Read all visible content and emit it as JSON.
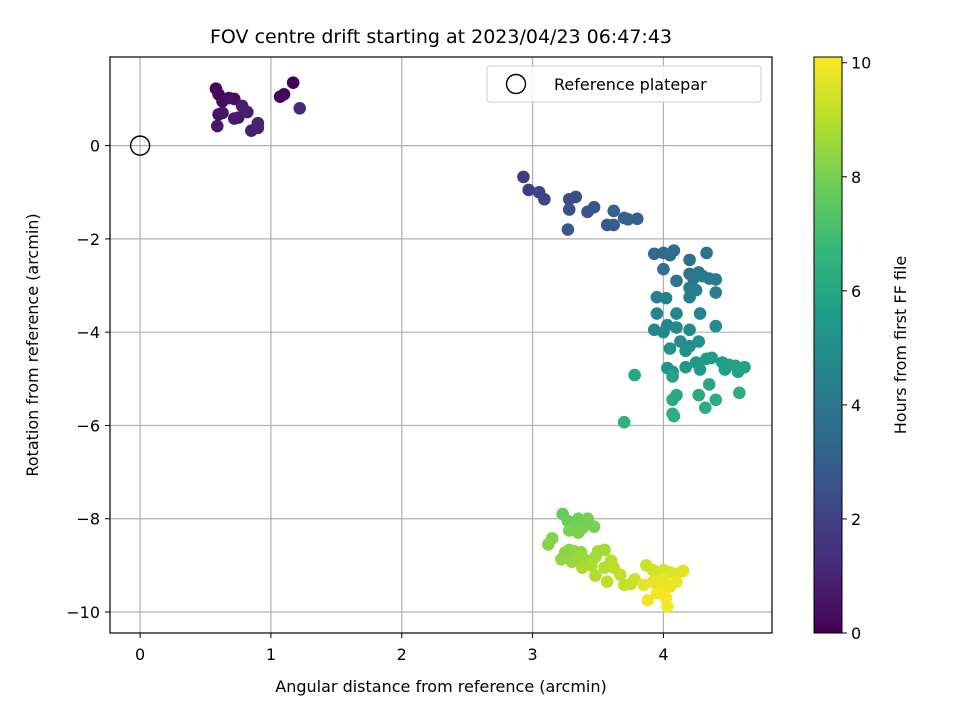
{
  "chart_data": {
    "type": "scatter",
    "title": "FOV centre drift starting at 2023/04/23 06:47:43",
    "xlabel": "Angular distance from reference (arcmin)",
    "ylabel": "Rotation from reference (arcmin)",
    "xlim": [
      -0.23,
      4.83
    ],
    "ylim": [
      -10.45,
      1.9
    ],
    "xticks": [
      0,
      1,
      2,
      3,
      4
    ],
    "yticks": [
      0,
      -2,
      -4,
      -6,
      -8,
      -10
    ],
    "xtick_labels": [
      "0",
      "1",
      "2",
      "3",
      "4"
    ],
    "ytick_labels": [
      "0",
      "−2",
      "−4",
      "−6",
      "−8",
      "−10"
    ],
    "grid": true,
    "legend": {
      "position": "top-right",
      "label": "Reference platepar"
    },
    "reference_point": {
      "x": 0,
      "y": 0
    },
    "colorbar": {
      "label": "Hours from first FF file",
      "range": [
        0,
        10.1
      ],
      "ticks": [
        0,
        2,
        4,
        6,
        8,
        10
      ],
      "tick_labels": [
        "0",
        "2",
        "4",
        "6",
        "8",
        "10"
      ],
      "colormap": "viridis"
    },
    "colors": {
      "viridis": [
        "#440154",
        "#482878",
        "#3e4989",
        "#31688e",
        "#26828e",
        "#1f9e89",
        "#35b779",
        "#6ece58",
        "#b5de2b",
        "#fde725"
      ]
    },
    "series": [
      {
        "points": [
          {
            "x": 0.58,
            "y": 1.22,
            "h": 0.05
          },
          {
            "x": 0.6,
            "y": 1.1,
            "h": 0.2
          },
          {
            "x": 0.63,
            "y": 0.95,
            "h": 0.35
          },
          {
            "x": 0.68,
            "y": 1.02,
            "h": 0.4
          },
          {
            "x": 0.72,
            "y": 1.0,
            "h": 0.5
          },
          {
            "x": 0.6,
            "y": 0.67,
            "h": 0.55
          },
          {
            "x": 0.63,
            "y": 0.7,
            "h": 0.6
          },
          {
            "x": 0.59,
            "y": 0.42,
            "h": 0.65
          },
          {
            "x": 0.75,
            "y": 0.6,
            "h": 0.7
          },
          {
            "x": 0.72,
            "y": 0.58,
            "h": 0.75
          },
          {
            "x": 0.78,
            "y": 0.85,
            "h": 0.8
          },
          {
            "x": 0.82,
            "y": 0.72,
            "h": 0.85
          },
          {
            "x": 0.85,
            "y": 0.32,
            "h": 0.9
          },
          {
            "x": 0.9,
            "y": 0.38,
            "h": 0.95
          },
          {
            "x": 0.9,
            "y": 0.48,
            "h": 1.0
          },
          {
            "x": 1.07,
            "y": 1.05,
            "h": 0.1
          },
          {
            "x": 1.1,
            "y": 1.1,
            "h": 0.15
          },
          {
            "x": 1.17,
            "y": 1.35,
            "h": 0.0
          },
          {
            "x": 1.22,
            "y": 0.8,
            "h": 1.2
          },
          {
            "x": 2.93,
            "y": -0.67,
            "h": 1.8
          },
          {
            "x": 2.97,
            "y": -0.95,
            "h": 1.9
          },
          {
            "x": 3.05,
            "y": -1.0,
            "h": 2.0
          },
          {
            "x": 3.09,
            "y": -1.15,
            "h": 2.1
          },
          {
            "x": 3.28,
            "y": -1.15,
            "h": 2.3
          },
          {
            "x": 3.33,
            "y": -1.1,
            "h": 2.4
          },
          {
            "x": 3.28,
            "y": -1.37,
            "h": 2.5
          },
          {
            "x": 3.42,
            "y": -1.42,
            "h": 2.6
          },
          {
            "x": 3.47,
            "y": -1.32,
            "h": 2.7
          },
          {
            "x": 3.27,
            "y": -1.8,
            "h": 2.8
          },
          {
            "x": 3.57,
            "y": -1.7,
            "h": 2.9
          },
          {
            "x": 3.62,
            "y": -1.7,
            "h": 3.0
          },
          {
            "x": 3.62,
            "y": -1.4,
            "h": 3.05
          },
          {
            "x": 3.7,
            "y": -1.55,
            "h": 3.1
          },
          {
            "x": 3.73,
            "y": -1.58,
            "h": 3.15
          },
          {
            "x": 3.8,
            "y": -1.57,
            "h": 3.2
          },
          {
            "x": 3.93,
            "y": -2.32,
            "h": 3.4
          },
          {
            "x": 4.0,
            "y": -2.3,
            "h": 3.5
          },
          {
            "x": 4.05,
            "y": -2.35,
            "h": 3.55
          },
          {
            "x": 4.08,
            "y": -2.25,
            "h": 3.6
          },
          {
            "x": 4.2,
            "y": -2.45,
            "h": 3.7
          },
          {
            "x": 4.33,
            "y": -2.3,
            "h": 3.75
          },
          {
            "x": 4.0,
            "y": -2.65,
            "h": 3.8
          },
          {
            "x": 4.1,
            "y": -2.9,
            "h": 3.85
          },
          {
            "x": 4.2,
            "y": -2.75,
            "h": 3.9
          },
          {
            "x": 4.23,
            "y": -2.85,
            "h": 3.95
          },
          {
            "x": 4.27,
            "y": -2.72,
            "h": 4.0
          },
          {
            "x": 4.3,
            "y": -2.8,
            "h": 4.05
          },
          {
            "x": 4.35,
            "y": -2.85,
            "h": 4.1
          },
          {
            "x": 4.4,
            "y": -2.87,
            "h": 4.15
          },
          {
            "x": 4.2,
            "y": -3.05,
            "h": 4.2
          },
          {
            "x": 4.25,
            "y": -3.1,
            "h": 4.25
          },
          {
            "x": 4.4,
            "y": -3.15,
            "h": 4.3
          },
          {
            "x": 4.2,
            "y": -3.25,
            "h": 4.35
          },
          {
            "x": 3.95,
            "y": -3.25,
            "h": 4.4
          },
          {
            "x": 4.02,
            "y": -3.27,
            "h": 4.45
          },
          {
            "x": 3.95,
            "y": -3.6,
            "h": 4.5
          },
          {
            "x": 4.1,
            "y": -3.6,
            "h": 4.55
          },
          {
            "x": 4.28,
            "y": -3.6,
            "h": 4.6
          },
          {
            "x": 4.03,
            "y": -3.85,
            "h": 4.65
          },
          {
            "x": 3.93,
            "y": -3.95,
            "h": 4.7
          },
          {
            "x": 4.0,
            "y": -4.0,
            "h": 4.75
          },
          {
            "x": 4.1,
            "y": -3.9,
            "h": 4.8
          },
          {
            "x": 4.2,
            "y": -3.95,
            "h": 4.85
          },
          {
            "x": 4.4,
            "y": -3.87,
            "h": 4.9
          },
          {
            "x": 4.13,
            "y": -4.2,
            "h": 4.95
          },
          {
            "x": 4.2,
            "y": -4.3,
            "h": 5.0
          },
          {
            "x": 4.27,
            "y": -4.2,
            "h": 5.05
          },
          {
            "x": 4.05,
            "y": -4.35,
            "h": 5.1
          },
          {
            "x": 4.17,
            "y": -4.4,
            "h": 5.15
          },
          {
            "x": 4.03,
            "y": -4.77,
            "h": 5.2
          },
          {
            "x": 4.07,
            "y": -4.85,
            "h": 5.3
          },
          {
            "x": 4.17,
            "y": -4.75,
            "h": 5.35
          },
          {
            "x": 4.25,
            "y": -4.65,
            "h": 5.4
          },
          {
            "x": 4.28,
            "y": -4.8,
            "h": 5.45
          },
          {
            "x": 4.33,
            "y": -4.57,
            "h": 5.5
          },
          {
            "x": 4.37,
            "y": -4.55,
            "h": 5.55
          },
          {
            "x": 4.45,
            "y": -4.65,
            "h": 5.6
          },
          {
            "x": 4.47,
            "y": -4.8,
            "h": 5.65
          },
          {
            "x": 4.5,
            "y": -4.7,
            "h": 5.7
          },
          {
            "x": 4.55,
            "y": -4.72,
            "h": 5.75
          },
          {
            "x": 4.57,
            "y": -4.85,
            "h": 5.8
          },
          {
            "x": 4.62,
            "y": -4.75,
            "h": 5.85
          },
          {
            "x": 4.07,
            "y": -4.95,
            "h": 5.9
          },
          {
            "x": 3.78,
            "y": -4.92,
            "h": 5.95
          },
          {
            "x": 4.35,
            "y": -5.12,
            "h": 6.0
          },
          {
            "x": 4.1,
            "y": -5.35,
            "h": 6.05
          },
          {
            "x": 4.07,
            "y": -5.45,
            "h": 6.1
          },
          {
            "x": 4.27,
            "y": -5.35,
            "h": 6.15
          },
          {
            "x": 4.4,
            "y": -5.45,
            "h": 6.2
          },
          {
            "x": 4.58,
            "y": -5.3,
            "h": 6.25
          },
          {
            "x": 4.32,
            "y": -5.62,
            "h": 6.3
          },
          {
            "x": 4.07,
            "y": -5.75,
            "h": 6.35
          },
          {
            "x": 4.08,
            "y": -5.8,
            "h": 6.4
          },
          {
            "x": 3.7,
            "y": -5.93,
            "h": 6.45
          },
          {
            "x": 3.23,
            "y": -7.9,
            "h": 7.7
          },
          {
            "x": 3.27,
            "y": -8.05,
            "h": 7.75
          },
          {
            "x": 3.3,
            "y": -8.1,
            "h": 7.8
          },
          {
            "x": 3.35,
            "y": -8.0,
            "h": 7.85
          },
          {
            "x": 3.38,
            "y": -8.2,
            "h": 7.9
          },
          {
            "x": 3.42,
            "y": -8.0,
            "h": 7.95
          },
          {
            "x": 3.47,
            "y": -8.17,
            "h": 8.0
          },
          {
            "x": 3.28,
            "y": -8.25,
            "h": 8.05
          },
          {
            "x": 3.35,
            "y": -8.3,
            "h": 8.1
          },
          {
            "x": 3.15,
            "y": -8.42,
            "h": 8.15
          },
          {
            "x": 3.12,
            "y": -8.55,
            "h": 8.2
          },
          {
            "x": 3.25,
            "y": -8.72,
            "h": 8.25
          },
          {
            "x": 3.28,
            "y": -8.67,
            "h": 8.3
          },
          {
            "x": 3.32,
            "y": -8.7,
            "h": 8.35
          },
          {
            "x": 3.37,
            "y": -8.72,
            "h": 8.4
          },
          {
            "x": 3.22,
            "y": -8.87,
            "h": 8.45
          },
          {
            "x": 3.3,
            "y": -8.92,
            "h": 8.5
          },
          {
            "x": 3.37,
            "y": -8.82,
            "h": 8.55
          },
          {
            "x": 3.42,
            "y": -8.9,
            "h": 8.6
          },
          {
            "x": 3.5,
            "y": -8.7,
            "h": 8.65
          },
          {
            "x": 3.55,
            "y": -8.67,
            "h": 8.7
          },
          {
            "x": 3.48,
            "y": -8.82,
            "h": 8.75
          },
          {
            "x": 3.38,
            "y": -9.05,
            "h": 8.8
          },
          {
            "x": 3.45,
            "y": -9.0,
            "h": 8.85
          },
          {
            "x": 3.48,
            "y": -9.22,
            "h": 8.9
          },
          {
            "x": 3.55,
            "y": -9.05,
            "h": 8.95
          },
          {
            "x": 3.6,
            "y": -8.9,
            "h": 9.0
          },
          {
            "x": 3.62,
            "y": -9.05,
            "h": 9.05
          },
          {
            "x": 3.57,
            "y": -9.35,
            "h": 9.1
          },
          {
            "x": 3.67,
            "y": -9.2,
            "h": 9.15
          },
          {
            "x": 3.7,
            "y": -9.42,
            "h": 9.2
          },
          {
            "x": 3.75,
            "y": -9.4,
            "h": 9.25
          },
          {
            "x": 3.78,
            "y": -9.3,
            "h": 9.3
          },
          {
            "x": 3.87,
            "y": -9.0,
            "h": 9.35
          },
          {
            "x": 3.92,
            "y": -9.1,
            "h": 9.4
          },
          {
            "x": 3.97,
            "y": -9.2,
            "h": 9.45
          },
          {
            "x": 4.0,
            "y": -9.1,
            "h": 9.5
          },
          {
            "x": 4.05,
            "y": -9.15,
            "h": 9.55
          },
          {
            "x": 4.1,
            "y": -9.18,
            "h": 9.6
          },
          {
            "x": 4.15,
            "y": -9.12,
            "h": 9.65
          },
          {
            "x": 3.85,
            "y": -9.42,
            "h": 9.7
          },
          {
            "x": 3.92,
            "y": -9.35,
            "h": 9.72
          },
          {
            "x": 3.95,
            "y": -9.4,
            "h": 9.75
          },
          {
            "x": 4.0,
            "y": -9.3,
            "h": 9.78
          },
          {
            "x": 4.05,
            "y": -9.45,
            "h": 9.8
          },
          {
            "x": 4.1,
            "y": -9.35,
            "h": 9.82
          },
          {
            "x": 3.98,
            "y": -9.55,
            "h": 9.85
          },
          {
            "x": 3.88,
            "y": -9.75,
            "h": 9.9
          },
          {
            "x": 3.95,
            "y": -9.6,
            "h": 9.93
          },
          {
            "x": 4.03,
            "y": -9.88,
            "h": 9.97
          },
          {
            "x": 4.02,
            "y": -9.7,
            "h": 10.0
          }
        ]
      }
    ]
  }
}
